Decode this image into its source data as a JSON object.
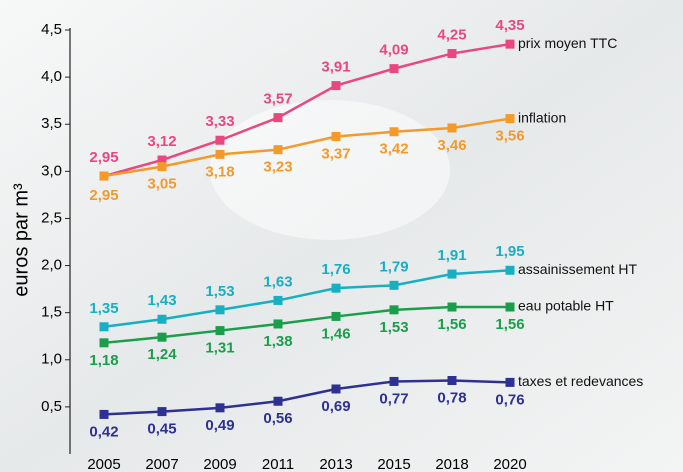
{
  "chart_data": {
    "type": "line",
    "y_label": "euros par m³",
    "categories": [
      "2005",
      "2007",
      "2009",
      "2011",
      "2013",
      "2015",
      "2018",
      "2020"
    ],
    "ylim": [
      0,
      4.5
    ],
    "yticks": [
      {
        "value": 0.5,
        "label": "0,5"
      },
      {
        "value": 1.0,
        "label": "1,0"
      },
      {
        "value": 1.5,
        "label": "1,5"
      },
      {
        "value": 2.0,
        "label": "2,0"
      },
      {
        "value": 2.5,
        "label": "2,5"
      },
      {
        "value": 3.0,
        "label": "3,0"
      },
      {
        "value": 3.5,
        "label": "3,5"
      },
      {
        "value": 4.0,
        "label": "4,0"
      },
      {
        "value": 4.5,
        "label": "4,5"
      }
    ],
    "series": [
      {
        "name": "prix moyen TTC",
        "color": "#e9487f",
        "values": [
          2.95,
          3.12,
          3.33,
          3.57,
          3.91,
          4.09,
          4.25,
          4.35
        ],
        "value_labels": [
          "2,95",
          "3,12",
          "3,33",
          "3,57",
          "3,91",
          "4,09",
          "4,25",
          "4,35"
        ]
      },
      {
        "name": "inflation",
        "color": "#f39a2b",
        "values": [
          2.95,
          3.05,
          3.18,
          3.23,
          3.37,
          3.42,
          3.46,
          3.56
        ],
        "value_labels": [
          "2,95",
          "3,05",
          "3,18",
          "3,23",
          "3,37",
          "3,42",
          "3,46",
          "3,56"
        ]
      },
      {
        "name": "assainissement HT",
        "color": "#17afc1",
        "values": [
          1.35,
          1.43,
          1.53,
          1.63,
          1.76,
          1.79,
          1.91,
          1.95
        ],
        "value_labels": [
          "1,35",
          "1,43",
          "1,53",
          "1,63",
          "1,76",
          "1,79",
          "1,91",
          "1,95"
        ]
      },
      {
        "name": "eau potable HT",
        "color": "#1b9e4b",
        "values": [
          1.18,
          1.24,
          1.31,
          1.38,
          1.46,
          1.53,
          1.56,
          1.56
        ],
        "value_labels": [
          "1,18",
          "1,24",
          "1,31",
          "1,38",
          "1,46",
          "1,53",
          "1,56",
          "1,56"
        ]
      },
      {
        "name": "taxes et redevances",
        "color": "#2e3192",
        "values": [
          0.42,
          0.45,
          0.49,
          0.56,
          0.69,
          0.77,
          0.78,
          0.76
        ],
        "value_labels": [
          "0,42",
          "0,45",
          "0,49",
          "0,56",
          "0,69",
          "0,77",
          "0,78",
          "0,76"
        ]
      }
    ]
  }
}
